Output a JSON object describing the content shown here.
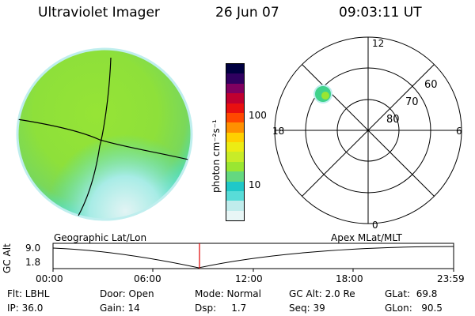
{
  "header": {
    "instrument": "Ultraviolet Imager",
    "date": "26 Jun 07",
    "time": "09:03:11 UT"
  },
  "colors": {
    "background": "#ffffff",
    "disk_main": "#8ee03a",
    "disk_cyan": "#43dcd0",
    "disk_edge": "#d6f2f2",
    "oval_spot": "#3fd28b",
    "orbit_marker": "#e00000"
  },
  "colorbar": {
    "unit_label": "photon cm⁻²s⁻¹",
    "ticks": [
      "100",
      "10"
    ],
    "colors": [
      "#e8f6f6",
      "#c0ecec",
      "#58dcd8",
      "#20c8c8",
      "#64d880",
      "#9ae632",
      "#c8ec28",
      "#ecec14",
      "#ffd000",
      "#ff9000",
      "#ff4800",
      "#e81010",
      "#c00030",
      "#800060",
      "#300060",
      "#000040"
    ]
  },
  "polar_plot": {
    "mlt_labels": {
      "top": "12",
      "bottom": "0",
      "left": "18",
      "right": "6"
    },
    "lat_labels": [
      "60",
      "70",
      "80"
    ]
  },
  "orbit_plot": {
    "left_title": "Geographic Lat/Lon",
    "right_title": "Apex MLat/MLT",
    "axis_label": "GC Alt",
    "y_ticks": [
      "9.0",
      "1.8"
    ],
    "x_ticks": [
      "00:00",
      "06:00",
      "12:00",
      "18:00",
      "23:59"
    ]
  },
  "info": {
    "col1": [
      "Flt: LBHL",
      "IP: 36.0"
    ],
    "col2": [
      "Door: Open",
      "Gain: 14"
    ],
    "col3": [
      "Mode: Normal",
      "Dsp:     1.7"
    ],
    "col4": [
      "GC Alt: 2.0 Re",
      "Seq: 39"
    ],
    "col5": [
      "GLat:  69.8",
      "GLon:   90.5"
    ]
  }
}
